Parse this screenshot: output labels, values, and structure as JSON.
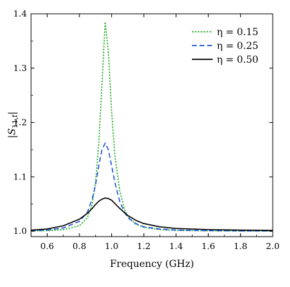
{
  "chart_data": {
    "type": "line",
    "xlabel": "Frequency (GHz)",
    "ylabel": "|S",
    "ylabel_sub": "11,f",
    "ylabel_end": "|",
    "xlim": [
      0.5,
      2.0
    ],
    "ylim": [
      0.99,
      1.4
    ],
    "xticks": [
      "0.6",
      "0.8",
      "1.0",
      "1.2",
      "1.4",
      "1.6",
      "1.8",
      "2.0"
    ],
    "yticks": [
      "1.0",
      "1.1",
      "1.2",
      "1.3",
      "1.4"
    ],
    "legend_position": "top-right",
    "grid": false,
    "series": [
      {
        "name": "η = 0.15",
        "color": "#22aa22",
        "style": "dotted",
        "x": [
          0.5,
          0.6,
          0.7,
          0.8,
          0.85,
          0.88,
          0.9,
          0.92,
          0.94,
          0.96,
          0.98,
          1.0,
          1.02,
          1.05,
          1.08,
          1.1,
          1.15,
          1.2,
          1.3,
          1.4,
          1.6,
          1.8,
          2.0
        ],
        "values": [
          1.0005,
          1.001,
          1.003,
          1.01,
          1.025,
          1.05,
          1.09,
          1.16,
          1.27,
          1.385,
          1.33,
          1.22,
          1.14,
          1.075,
          1.04,
          1.027,
          1.013,
          1.007,
          1.003,
          1.0015,
          1.0007,
          1.0004,
          1.0003
        ]
      },
      {
        "name": "η = 0.25",
        "color": "#2255dd",
        "style": "dashed",
        "x": [
          0.5,
          0.6,
          0.7,
          0.8,
          0.85,
          0.88,
          0.9,
          0.92,
          0.94,
          0.96,
          0.98,
          1.0,
          1.02,
          1.05,
          1.08,
          1.1,
          1.15,
          1.2,
          1.3,
          1.4,
          1.6,
          1.8,
          2.0
        ],
        "values": [
          1.001,
          1.002,
          1.006,
          1.018,
          1.035,
          1.06,
          1.085,
          1.12,
          1.15,
          1.162,
          1.15,
          1.12,
          1.09,
          1.055,
          1.035,
          1.025,
          1.014,
          1.008,
          1.004,
          1.002,
          1.001,
          1.0006,
          1.0004
        ]
      },
      {
        "name": "η = 0.50",
        "color": "#000000",
        "style": "solid",
        "x": [
          0.5,
          0.6,
          0.7,
          0.8,
          0.85,
          0.88,
          0.9,
          0.92,
          0.94,
          0.96,
          0.98,
          1.0,
          1.02,
          1.05,
          1.08,
          1.1,
          1.15,
          1.2,
          1.3,
          1.4,
          1.6,
          1.8,
          2.0
        ],
        "values": [
          1.002,
          1.004,
          1.01,
          1.022,
          1.033,
          1.042,
          1.049,
          1.055,
          1.059,
          1.061,
          1.06,
          1.057,
          1.051,
          1.042,
          1.034,
          1.029,
          1.02,
          1.014,
          1.008,
          1.005,
          1.003,
          1.002,
          1.0015
        ]
      }
    ]
  }
}
